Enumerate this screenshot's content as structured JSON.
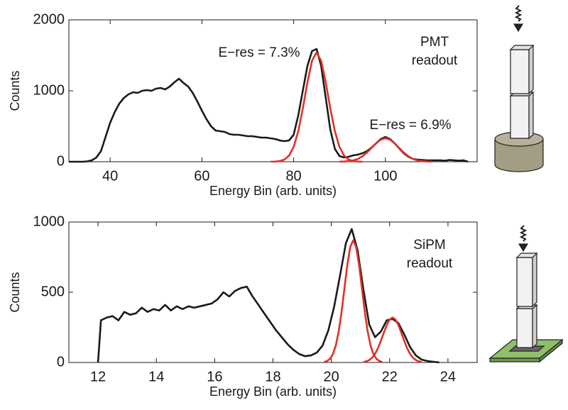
{
  "chart_data": [
    {
      "type": "line",
      "ylabel": "Counts",
      "xlabel": "Energy Bin (arb. units)",
      "xlim": [
        31,
        120
      ],
      "xticks": [
        40,
        60,
        80,
        100
      ],
      "ylim": [
        0,
        2000
      ],
      "yticks": [
        0,
        1000,
        2000
      ],
      "annotations": [
        "E−res = 7.3%",
        "E−res = 6.9%"
      ],
      "detector_label": [
        "PMT",
        "readout"
      ],
      "series": [
        {
          "color": "#1a1a1a",
          "x": [
            31,
            32,
            33,
            34,
            35,
            36,
            37,
            38,
            39,
            40,
            41,
            42,
            43,
            44,
            45,
            46,
            47,
            48,
            49,
            50,
            51,
            52,
            53,
            54,
            55,
            56,
            57,
            58,
            59,
            60,
            61,
            62,
            63,
            64,
            65,
            66,
            67,
            68,
            69,
            70,
            71,
            72,
            73,
            74,
            75,
            76,
            77,
            78,
            79,
            80,
            81,
            82,
            83,
            84,
            85,
            86,
            87,
            88,
            89,
            90,
            91,
            92,
            93,
            94,
            95,
            96,
            97,
            98,
            99,
            100,
            101,
            102,
            103,
            104,
            105,
            106,
            107,
            108,
            109,
            110,
            111,
            112,
            113,
            114,
            115,
            116,
            117,
            118
          ],
          "values": [
            0,
            0,
            0,
            0,
            5,
            20,
            60,
            150,
            350,
            550,
            700,
            820,
            900,
            950,
            980,
            970,
            1000,
            1010,
            1000,
            1030,
            1040,
            1020,
            1060,
            1120,
            1170,
            1110,
            1060,
            970,
            850,
            720,
            600,
            500,
            440,
            430,
            420,
            390,
            380,
            380,
            370,
            360,
            360,
            350,
            340,
            340,
            330,
            320,
            300,
            290,
            300,
            380,
            650,
            1000,
            1350,
            1560,
            1590,
            1350,
            900,
            450,
            180,
            80,
            60,
            70,
            90,
            100,
            120,
            150,
            200,
            260,
            320,
            350,
            320,
            260,
            190,
            120,
            70,
            40,
            30,
            25,
            20,
            20,
            20,
            20,
            15,
            25,
            20,
            15,
            20,
            0
          ]
        },
        {
          "color": "#e0302a",
          "x": [
            75,
            76,
            77,
            78,
            79,
            80,
            81,
            82,
            83,
            84,
            85,
            86,
            87,
            88,
            89,
            90,
            91,
            92,
            93,
            94,
            95
          ],
          "values": [
            0,
            2,
            9,
            31,
            86,
            208,
            428,
            749,
            1118,
            1422,
            1540,
            1422,
            1118,
            749,
            428,
            208,
            86,
            31,
            9,
            2,
            0
          ]
        },
        {
          "color": "#e0302a",
          "x": [
            90,
            91,
            92,
            93,
            94,
            95,
            96,
            97,
            98,
            99,
            100,
            101,
            102,
            103,
            104,
            105,
            106,
            107,
            108,
            109,
            110
          ],
          "values": [
            1,
            3,
            8,
            19,
            40,
            77,
            130,
            195,
            261,
            311,
            330,
            311,
            261,
            195,
            130,
            77,
            40,
            19,
            8,
            3,
            1
          ]
        }
      ]
    },
    {
      "type": "line",
      "ylabel": "Counts",
      "xlabel": "Energy Bin (arb. units)",
      "xlim": [
        11,
        25
      ],
      "xticks": [
        12,
        14,
        16,
        18,
        20,
        22,
        24
      ],
      "ylim": [
        0,
        1000
      ],
      "yticks": [
        0,
        500,
        1000
      ],
      "detector_label": [
        "SiPM",
        "readout"
      ],
      "series": [
        {
          "color": "#1a1a1a",
          "x": [
            12.0,
            12.1,
            12.3,
            12.5,
            12.7,
            12.9,
            13.1,
            13.3,
            13.5,
            13.7,
            13.9,
            14.1,
            14.3,
            14.5,
            14.7,
            14.9,
            15.1,
            15.3,
            15.5,
            15.7,
            15.9,
            16.1,
            16.3,
            16.5,
            16.7,
            16.9,
            17.1,
            17.3,
            17.5,
            17.7,
            17.9,
            18.1,
            18.3,
            18.5,
            18.7,
            18.9,
            19.1,
            19.3,
            19.5,
            19.7,
            19.9,
            20.1,
            20.3,
            20.5,
            20.7,
            20.9,
            21.1,
            21.3,
            21.5,
            21.7,
            21.9,
            22.1,
            22.3,
            22.5,
            22.7,
            22.9,
            23.1,
            23.3,
            23.5,
            23.7
          ],
          "values": [
            0,
            300,
            320,
            330,
            300,
            360,
            340,
            350,
            390,
            360,
            380,
            370,
            410,
            370,
            400,
            380,
            400,
            390,
            400,
            410,
            420,
            450,
            500,
            470,
            510,
            530,
            540,
            470,
            410,
            350,
            290,
            230,
            180,
            130,
            90,
            60,
            45,
            50,
            70,
            120,
            230,
            400,
            620,
            850,
            950,
            800,
            520,
            270,
            180,
            220,
            300,
            310,
            280,
            200,
            110,
            50,
            20,
            10,
            5,
            0
          ]
        },
        {
          "color": "#e0302a",
          "x": [
            19.75,
            19.85,
            19.95,
            20.05,
            20.15,
            20.25,
            20.35,
            20.45,
            20.55,
            20.65,
            20.75,
            20.85,
            20.95,
            21.05,
            21.15,
            21.25,
            21.35,
            21.45,
            21.55,
            21.65,
            21.75
          ],
          "values": [
            3,
            10,
            25,
            57,
            117,
            217,
            357,
            528,
            697,
            823,
            870,
            823,
            697,
            528,
            357,
            217,
            117,
            57,
            25,
            10,
            3
          ]
        },
        {
          "color": "#e0302a",
          "x": [
            21.1,
            21.2,
            21.3,
            21.4,
            21.5,
            21.6,
            21.7,
            21.8,
            21.9,
            22.0,
            22.1,
            22.2,
            22.3,
            22.4,
            22.5,
            22.6,
            22.7,
            22.8,
            22.9,
            23.0,
            23.1
          ],
          "values": [
            3,
            8,
            17,
            34,
            61,
            102,
            154,
            212,
            266,
            306,
            320,
            306,
            266,
            212,
            154,
            102,
            61,
            34,
            17,
            8,
            3
          ]
        }
      ]
    }
  ]
}
